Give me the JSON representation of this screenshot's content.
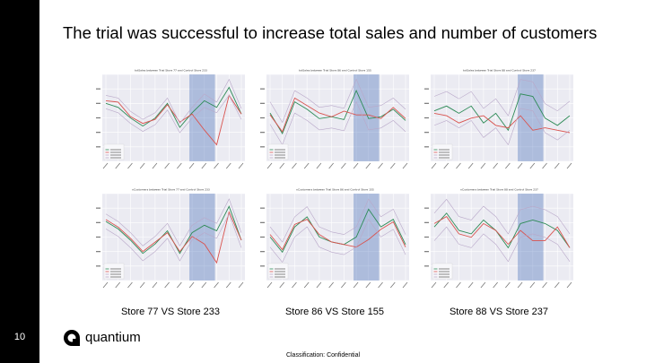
{
  "slide": {
    "title": "The trial was successful to increase total sales and number of customers",
    "page_number": "10",
    "classification": "Classification: Confidential"
  },
  "brand": {
    "name": "quantium",
    "icon": "quantium-logo-icon"
  },
  "colors": {
    "sidebar": "#000000",
    "control_line": "#2e8b57",
    "trial_line": "#d9534f",
    "ci_line": "#b9a8c9",
    "trial_period": "#3a64b4",
    "plot_bg": "#ebebf2"
  },
  "captions": [
    "Store 77 VS Store 233",
    "Store 86 VS Store 155",
    "Store 88 VS Store 237"
  ],
  "chart_data": [
    {
      "type": "line",
      "title": "totSales between Trial Store 77 and Control Store 233",
      "x": [
        0,
        1,
        2,
        3,
        4,
        5,
        6,
        7,
        8,
        9,
        10,
        11
      ],
      "trial_period": [
        7,
        9
      ],
      "series": [
        {
          "values": [
            240,
            225,
            185,
            155,
            185,
            240,
            150,
            205,
            250,
            225,
            300,
            200
          ]
        },
        {
          "values": [
            250,
            245,
            190,
            165,
            180,
            235,
            170,
            200,
            140,
            85,
            270,
            200
          ]
        },
        {
          "values": [
            270,
            260,
            210,
            180,
            205,
            260,
            165,
            225,
            275,
            245,
            330,
            220
          ]
        },
        {
          "values": [
            220,
            205,
            165,
            135,
            160,
            215,
            130,
            185,
            225,
            205,
            270,
            180
          ]
        }
      ]
    },
    {
      "type": "line",
      "title": "totSales between Trial Store 86 and Control Store 155",
      "x": [
        0,
        1,
        2,
        3,
        4,
        5,
        6,
        7,
        8,
        9,
        10,
        11
      ],
      "trial_period": [
        7,
        9
      ],
      "series": [
        {
          "values": [
            900,
            790,
            960,
            920,
            870,
            880,
            865,
            1020,
            870,
            880,
            920,
            860
          ]
        },
        {
          "values": [
            890,
            800,
            980,
            940,
            900,
            880,
            910,
            890,
            890,
            870,
            930,
            870
          ]
        },
        {
          "values": [
            960,
            850,
            1020,
            980,
            930,
            940,
            925,
            1080,
            930,
            940,
            980,
            920
          ]
        },
        {
          "values": [
            840,
            730,
            900,
            860,
            810,
            820,
            805,
            960,
            810,
            820,
            860,
            800
          ]
        }
      ]
    },
    {
      "type": "line",
      "title": "totSales between Trial Store 88 and Control Store 237",
      "x": [
        0,
        1,
        2,
        3,
        4,
        5,
        6,
        7,
        8,
        9,
        10,
        11
      ],
      "trial_period": [
        7,
        9
      ],
      "series": [
        {
          "values": [
            1340,
            1360,
            1330,
            1360,
            1290,
            1330,
            1260,
            1410,
            1400,
            1310,
            1280,
            1320
          ]
        },
        {
          "values": [
            1330,
            1320,
            1290,
            1310,
            1320,
            1280,
            1270,
            1320,
            1260,
            1270,
            1260,
            1250
          ]
        },
        {
          "values": [
            1400,
            1420,
            1390,
            1420,
            1350,
            1390,
            1320,
            1470,
            1460,
            1370,
            1340,
            1380
          ]
        },
        {
          "values": [
            1280,
            1300,
            1270,
            1300,
            1230,
            1270,
            1200,
            1350,
            1340,
            1250,
            1220,
            1260
          ]
        }
      ]
    },
    {
      "type": "line",
      "title": "nCustomers between Trial Store 77 and Control Store 233",
      "x": [
        0,
        1,
        2,
        3,
        4,
        5,
        6,
        7,
        8,
        9,
        10,
        11
      ],
      "trial_period": [
        7,
        9
      ],
      "series": [
        {
          "values": [
            50,
            46,
            40,
            33,
            38,
            45,
            33,
            44,
            48,
            45,
            58,
            40
          ]
        },
        {
          "values": [
            51,
            47,
            41,
            34,
            39,
            44,
            34,
            42,
            38,
            28,
            55,
            40
          ]
        },
        {
          "values": [
            54,
            50,
            44,
            37,
            42,
            49,
            37,
            48,
            52,
            49,
            62,
            44
          ]
        },
        {
          "values": [
            46,
            42,
            36,
            29,
            34,
            41,
            29,
            40,
            44,
            41,
            54,
            36
          ]
        }
      ]
    },
    {
      "type": "line",
      "title": "nCustomers between Trial Store 86 and Control Store 155",
      "x": [
        0,
        1,
        2,
        3,
        4,
        5,
        6,
        7,
        8,
        9,
        10,
        11
      ],
      "trial_period": [
        7,
        9
      ],
      "series": [
        {
          "values": [
            100,
            94,
            104,
            108,
            100,
            98,
            97,
            100,
            111,
            104,
            107,
            97
          ]
        },
        {
          "values": [
            101,
            95,
            105,
            107,
            101,
            98,
            97,
            96,
            99,
            103,
            106,
            96
          ]
        },
        {
          "values": [
            104,
            98,
            108,
            112,
            104,
            102,
            101,
            104,
            115,
            108,
            111,
            101
          ]
        },
        {
          "values": [
            96,
            90,
            100,
            104,
            96,
            94,
            93,
            96,
            107,
            100,
            103,
            93
          ]
        }
      ]
    },
    {
      "type": "line",
      "title": "nCustomers between Trial Store 88 and Control Store 237",
      "x": [
        0,
        1,
        2,
        3,
        4,
        5,
        6,
        7,
        8,
        9,
        10,
        11
      ],
      "trial_period": [
        7,
        9
      ],
      "series": [
        {
          "values": [
            127,
            131,
            126,
            125,
            129,
            126,
            121,
            128,
            129,
            128,
            126,
            121
          ]
        },
        {
          "values": [
            128,
            130,
            125,
            124,
            128,
            126,
            122,
            126,
            123,
            123,
            127,
            121
          ]
        },
        {
          "values": [
            131,
            135,
            130,
            129,
            133,
            130,
            125,
            132,
            133,
            132,
            130,
            125
          ]
        },
        {
          "values": [
            123,
            127,
            122,
            121,
            125,
            122,
            117,
            124,
            125,
            124,
            122,
            117
          ]
        }
      ]
    }
  ]
}
